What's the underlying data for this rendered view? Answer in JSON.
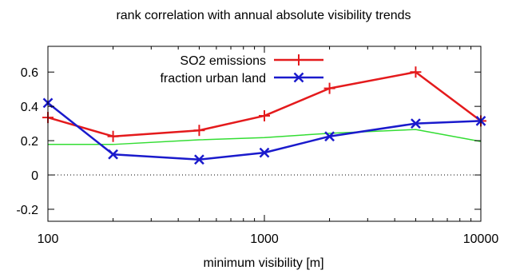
{
  "chart_data": {
    "type": "line",
    "title": "rank correlation with annual absolute visibility trends",
    "xlabel": "minimum visibility [m]",
    "ylabel": "",
    "x_scale": "log",
    "xlim": [
      100,
      10000
    ],
    "ylim": [
      -0.27,
      0.75
    ],
    "x_ticks": [
      {
        "value": 100,
        "label": "100"
      },
      {
        "value": 1000,
        "label": "1000"
      },
      {
        "value": 10000,
        "label": "10000"
      }
    ],
    "y_ticks": [
      {
        "value": -0.2,
        "label": "-0.2"
      },
      {
        "value": 0,
        "label": "0"
      },
      {
        "value": 0.2,
        "label": "0.2"
      },
      {
        "value": 0.4,
        "label": "0.4"
      },
      {
        "value": 0.6,
        "label": "0.6"
      }
    ],
    "zero_line": true,
    "legend_position": "top-center",
    "series": [
      {
        "name": "SO2 emissions",
        "color": "#e41a1c",
        "marker": "plus",
        "in_legend": true,
        "x": [
          100,
          200,
          500,
          1000,
          2000,
          5000,
          10000
        ],
        "y": [
          0.335,
          0.225,
          0.26,
          0.345,
          0.505,
          0.6,
          0.315
        ]
      },
      {
        "name": "fraction urban land",
        "color": "#1a1acc",
        "marker": "x",
        "in_legend": true,
        "x": [
          100,
          200,
          500,
          1000,
          2000,
          5000,
          10000
        ],
        "y": [
          0.42,
          0.12,
          0.09,
          0.13,
          0.225,
          0.3,
          0.315
        ]
      },
      {
        "name": "",
        "color": "#33dd33",
        "marker": "none",
        "in_legend": false,
        "x": [
          100,
          200,
          500,
          1000,
          2000,
          5000,
          10000
        ],
        "y": [
          0.178,
          0.178,
          0.205,
          0.218,
          0.243,
          0.265,
          0.195
        ]
      }
    ]
  }
}
